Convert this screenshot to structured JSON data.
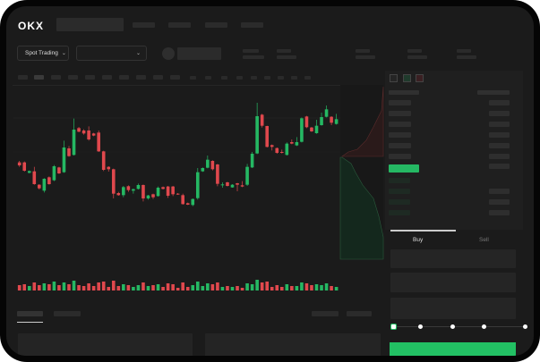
{
  "header": {
    "logo": "OKX",
    "market_dropdown": "Spot Trading"
  },
  "order_panel": {
    "tabs": [
      "Buy",
      "Sell"
    ],
    "active_tab": "Buy",
    "slider_percent": 0
  },
  "colors": {
    "up": "#25b863",
    "down": "#e0484d",
    "background": "#1b1b1b",
    "accent": "#22c063"
  },
  "chart_data": {
    "type": "candlestick",
    "candles": [
      [
        185,
        190,
        170,
        175
      ],
      [
        185,
        188,
        154,
        157
      ],
      [
        150,
        158,
        148,
        156
      ],
      [
        155,
        170,
        110,
        112
      ],
      [
        110,
        112,
        94,
        98
      ],
      [
        90,
        132,
        84,
        130
      ],
      [
        135,
        138,
        110,
        112
      ],
      [
        125,
        176,
        122,
        172
      ],
      [
        168,
        170,
        146,
        148
      ],
      [
        152,
        258,
        150,
        235
      ],
      [
        232,
        240,
        204,
        206
      ],
      [
        210,
        332,
        208,
        295
      ],
      [
        300,
        304,
        286,
        288
      ],
      [
        292,
        296,
        278,
        282
      ],
      [
        292,
        306,
        258,
        262
      ],
      [
        282,
        284,
        273,
        275
      ],
      [
        285,
        292,
        220,
        222
      ],
      [
        222,
        224,
        156,
        160
      ],
      [
        170,
        172,
        154,
        162
      ],
      [
        162,
        164,
        64,
        80
      ],
      [
        82,
        86,
        73,
        75
      ],
      [
        75,
        106,
        68,
        102
      ],
      [
        105,
        108,
        86,
        92
      ],
      [
        90,
        97,
        80,
        95
      ],
      [
        96,
        114,
        94,
        109
      ],
      [
        109,
        111,
        54,
        64
      ],
      [
        64,
        76,
        60,
        74
      ],
      [
        78,
        80,
        62,
        68
      ],
      [
        72,
        104,
        70,
        100
      ],
      [
        102,
        104,
        94,
        96
      ],
      [
        104,
        106,
        66,
        73
      ],
      [
        104,
        106,
        72,
        78
      ],
      [
        80,
        82,
        76,
        77
      ],
      [
        75,
        80,
        43,
        45
      ],
      [
        48,
        50,
        42,
        43
      ],
      [
        42,
        64,
        38,
        62
      ],
      [
        65,
        166,
        60,
        152
      ],
      [
        155,
        168,
        153,
        166
      ],
      [
        167,
        208,
        165,
        194
      ],
      [
        190,
        192,
        158,
        162
      ],
      [
        178,
        180,
        105,
        113
      ],
      [
        108,
        118,
        100,
        111
      ],
      [
        118,
        120,
        104,
        106
      ],
      [
        101,
        112,
        100,
        110
      ],
      [
        115,
        116,
        88,
        110
      ],
      [
        108,
        122,
        102,
        104
      ],
      [
        110,
        180,
        106,
        170
      ],
      [
        168,
        220,
        166,
        214
      ],
      [
        215,
        385,
        213,
        340
      ],
      [
        345,
        348,
        302,
        308
      ],
      [
        307,
        308,
        235,
        237
      ],
      [
        243,
        245,
        225,
        237
      ],
      [
        233,
        235,
        214,
        217
      ],
      [
        220,
        228,
        215,
        217
      ],
      [
        210,
        252,
        208,
        248
      ],
      [
        253,
        262,
        246,
        248
      ],
      [
        242,
        270,
        240,
        253
      ],
      [
        254,
        336,
        252,
        333
      ],
      [
        339,
        341,
        300,
        303
      ],
      [
        302,
        304,
        287,
        289
      ],
      [
        283,
        328,
        281,
        308
      ],
      [
        310,
        352,
        308,
        337
      ],
      [
        338,
        376,
        336,
        363
      ],
      [
        338,
        340,
        310,
        318
      ],
      [
        314,
        348,
        312,
        330
      ]
    ],
    "volumes": [
      6,
      7,
      5,
      9,
      6,
      8,
      7,
      10,
      6,
      9,
      7,
      11,
      6,
      5,
      8,
      5,
      9,
      10,
      4,
      11,
      5,
      7,
      6,
      4,
      6,
      9,
      5,
      6,
      7,
      4,
      8,
      7,
      3,
      9,
      4,
      6,
      10,
      5,
      8,
      7,
      9,
      4,
      5,
      4,
      5,
      3,
      8,
      7,
      12,
      9,
      10,
      4,
      6,
      4,
      7,
      5,
      5,
      9,
      8,
      6,
      7,
      6,
      8,
      5,
      4
    ]
  }
}
